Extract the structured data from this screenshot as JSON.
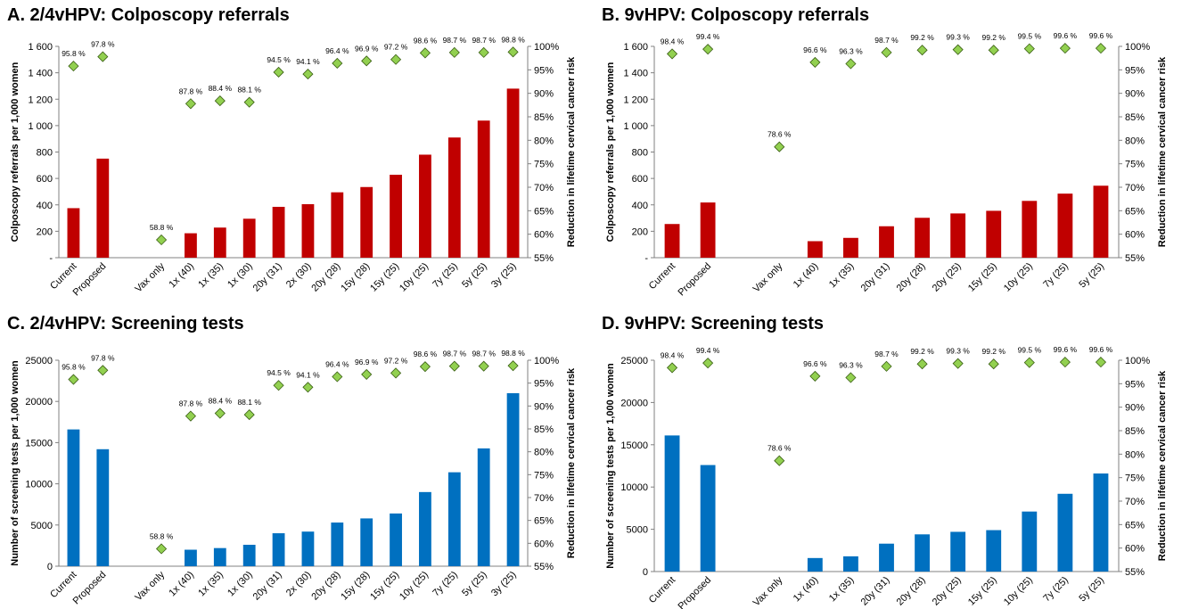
{
  "colors": {
    "red_bar": "#C00000",
    "blue_bar": "#0070C0",
    "marker_fill": "#92D050",
    "marker_stroke": "#3A5E14",
    "axis": "#808080"
  },
  "chart_data": [
    {
      "id": "A",
      "type": "bar",
      "title": "A. 2/4vHPV: Colposcopy referrals",
      "ylabel": "Colposcopy referrals per 1,000 women",
      "y2label": "Reduction in lifetime cervical cancer risk",
      "ylim": [
        0,
        1600
      ],
      "yticks": [
        0,
        200,
        400,
        600,
        800,
        1000,
        1200,
        1400,
        1600
      ],
      "ytick_labels": [
        "-",
        "200",
        "400",
        "600",
        "800",
        "1 000",
        "1 200",
        "1 400",
        "1 600"
      ],
      "y2lim": [
        55,
        100
      ],
      "y2ticks": [
        55,
        60,
        65,
        70,
        75,
        80,
        85,
        90,
        95,
        100
      ],
      "y2tick_labels": [
        "55%",
        "60%",
        "65%",
        "70%",
        "75%",
        "80%",
        "85%",
        "90%",
        "95%",
        "100%"
      ],
      "bar_color": "red",
      "categories": [
        "Current",
        "Proposed",
        "",
        "Vax only",
        "1x (40)",
        "1x (35)",
        "1x (30)",
        "20y (31)",
        "2x (30)",
        "20y (28)",
        "15y (28)",
        "15y (25)",
        "10y (25)",
        "7y (25)",
        "5y (25)",
        "3y (25)"
      ],
      "bars": [
        375,
        750,
        null,
        0,
        185,
        228,
        295,
        385,
        405,
        495,
        535,
        628,
        780,
        910,
        1038,
        1280
      ],
      "risk_reduction": [
        95.8,
        97.8,
        null,
        58.8,
        87.8,
        88.4,
        88.1,
        94.5,
        94.1,
        96.4,
        96.9,
        97.2,
        98.6,
        98.7,
        98.7,
        98.8
      ],
      "risk_labels": [
        "95.8 %",
        "97.8 %",
        "",
        "58.8 %",
        "87.8 %",
        "88.4 %",
        "88.1 %",
        "94.5 %",
        "94.1 %",
        "96.4 %",
        "96.9 %",
        "97.2 %",
        "98.6 %",
        "98.7 %",
        "98.7 %",
        "98.8 %"
      ]
    },
    {
      "id": "B",
      "type": "bar",
      "title": "B. 9vHPV: Colposcopy referrals",
      "ylabel": "Colposcopy referrals per 1,000 women",
      "y2label": "Reduction in lifetime cervical cancer risk",
      "ylim": [
        0,
        1600
      ],
      "yticks": [
        0,
        200,
        400,
        600,
        800,
        1000,
        1200,
        1400,
        1600
      ],
      "ytick_labels": [
        "-",
        "200",
        "400",
        "600",
        "800",
        "1 000",
        "1 200",
        "1 400",
        "1 600"
      ],
      "y2lim": [
        55,
        100
      ],
      "y2ticks": [
        55,
        60,
        65,
        70,
        75,
        80,
        85,
        90,
        95,
        100
      ],
      "y2tick_labels": [
        "55%",
        "60%",
        "65%",
        "70%",
        "75%",
        "80%",
        "85%",
        "90%",
        "95%",
        "100%"
      ],
      "bar_color": "red",
      "categories": [
        "Current",
        "Proposed",
        "",
        "Vax only",
        "1x (40)",
        "1x (35)",
        "20y (31)",
        "20y (28)",
        "20y (25)",
        "15y (25)",
        "10y (25)",
        "7y (25)",
        "5y (25)"
      ],
      "bars": [
        255,
        418,
        null,
        0,
        125,
        150,
        238,
        302,
        335,
        355,
        430,
        485,
        545
      ],
      "risk_reduction": [
        98.4,
        99.4,
        null,
        78.6,
        96.6,
        96.3,
        98.7,
        99.2,
        99.3,
        99.2,
        99.5,
        99.6,
        99.6
      ],
      "risk_labels": [
        "98.4 %",
        "99.4 %",
        "",
        "78.6 %",
        "96.6 %",
        "96.3 %",
        "98.7 %",
        "99.2 %",
        "99.3 %",
        "99.2 %",
        "99.5 %",
        "99.6 %",
        "99.6 %"
      ]
    },
    {
      "id": "C",
      "type": "bar",
      "title": "C. 2/4vHPV: Screening tests",
      "ylabel": "Number of screening tests per  1,000 women",
      "y2label": "Reduction in lifetime cervical cancer risk",
      "ylim": [
        0,
        25000
      ],
      "yticks": [
        0,
        5000,
        10000,
        15000,
        20000,
        25000
      ],
      "ytick_labels": [
        "0",
        "5000",
        "10000",
        "15000",
        "20000",
        "25000"
      ],
      "y2lim": [
        55,
        100
      ],
      "y2ticks": [
        55,
        60,
        65,
        70,
        75,
        80,
        85,
        90,
        95,
        100
      ],
      "y2tick_labels": [
        "55%",
        "60%",
        "65%",
        "70%",
        "75%",
        "80%",
        "85%",
        "90%",
        "95%",
        "100%"
      ],
      "bar_color": "blue",
      "categories": [
        "Current",
        "Proposed",
        "",
        "Vax only",
        "1x (40)",
        "1x (35)",
        "1x (30)",
        "20y (31)",
        "2x (30)",
        "20y (28)",
        "15y (28)",
        "15y (25)",
        "10y (25)",
        "7y (25)",
        "5y (25)",
        "3y (25)"
      ],
      "bars": [
        16600,
        14200,
        null,
        0,
        2000,
        2200,
        2600,
        4000,
        4200,
        5300,
        5800,
        6400,
        9000,
        11400,
        14300,
        21000
      ],
      "risk_reduction": [
        95.8,
        97.8,
        null,
        58.8,
        87.8,
        88.4,
        88.1,
        94.5,
        94.1,
        96.4,
        96.9,
        97.2,
        98.6,
        98.7,
        98.7,
        98.8
      ],
      "risk_labels": [
        "95.8 %",
        "97.8 %",
        "",
        "58.8 %",
        "87.8 %",
        "88.4 %",
        "88.1 %",
        "94.5 %",
        "94.1 %",
        "96.4 %",
        "96.9 %",
        "97.2 %",
        "98.6 %",
        "98.7 %",
        "98.7 %",
        "98.8 %"
      ]
    },
    {
      "id": "D",
      "type": "bar",
      "title": "D. 9vHPV: Screening tests",
      "ylabel": "Number of screening tests per 1,000 women",
      "y2label": "Reduction in lifetime cervical cancer risk",
      "ylim": [
        0,
        25000
      ],
      "yticks": [
        0,
        5000,
        10000,
        15000,
        20000,
        25000
      ],
      "ytick_labels": [
        "0",
        "5000",
        "10000",
        "15000",
        "20000",
        "25000"
      ],
      "y2lim": [
        55,
        100
      ],
      "y2ticks": [
        55,
        60,
        65,
        70,
        75,
        80,
        85,
        90,
        95,
        100
      ],
      "y2tick_labels": [
        "55%",
        "60%",
        "65%",
        "70%",
        "75%",
        "80%",
        "85%",
        "90%",
        "95%",
        "100%"
      ],
      "bar_color": "blue",
      "categories": [
        "Current",
        "Proposed",
        "",
        "Vax only",
        "1x (40)",
        "1x (35)",
        "20y (31)",
        "20y (28)",
        "20y (25)",
        "15y (25)",
        "10y (25)",
        "7y (25)",
        "5y (25)"
      ],
      "bars": [
        16100,
        12600,
        null,
        0,
        1600,
        1800,
        3300,
        4400,
        4700,
        4900,
        7100,
        9200,
        11600
      ],
      "risk_reduction": [
        98.4,
        99.4,
        null,
        78.6,
        96.6,
        96.3,
        98.7,
        99.2,
        99.3,
        99.2,
        99.5,
        99.6,
        99.6
      ],
      "risk_labels": [
        "98.4 %",
        "99.4 %",
        "",
        "78.6 %",
        "96.6 %",
        "96.3 %",
        "98.7 %",
        "99.2 %",
        "99.3 %",
        "99.2 %",
        "99.5 %",
        "99.6 %",
        "99.6 %"
      ]
    }
  ]
}
